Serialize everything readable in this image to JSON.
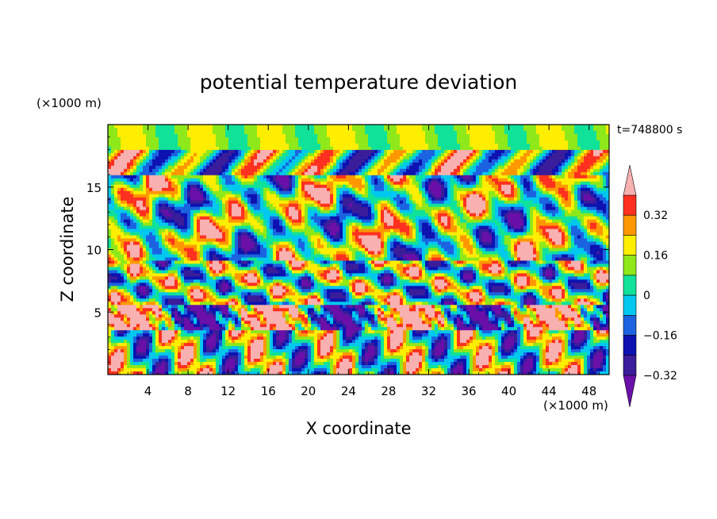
{
  "chart_data": {
    "type": "heatmap",
    "title": "potential temperature deviation",
    "time_label": "t=748800 s",
    "xlabel": "X coordinate",
    "ylabel": "Z coordinate",
    "x_unit": "(×1000 m)",
    "y_unit": "(×1000 m)",
    "xlim": [
      0,
      50
    ],
    "ylim": [
      0,
      20
    ],
    "x_ticks": [
      4,
      8,
      12,
      16,
      20,
      24,
      28,
      32,
      36,
      40,
      44,
      48
    ],
    "y_ticks": [
      5,
      10,
      15
    ],
    "colorbar": {
      "levels": [
        -0.4,
        -0.32,
        -0.24,
        -0.16,
        -0.08,
        0,
        0.08,
        0.16,
        0.24,
        0.32,
        0.4
      ],
      "tick_values": [
        0.32,
        0.16,
        0,
        -0.16,
        -0.32
      ],
      "tick_labels": [
        "0.32",
        "0.16",
        "0",
        "−0.16",
        "−0.32"
      ],
      "colors": [
        "#6a0fa8",
        "#3a1d9a",
        "#0d12b0",
        "#1b63e0",
        "#00c8ee",
        "#10e29a",
        "#8ee81a",
        "#ffee00",
        "#ff9800",
        "#ff3020",
        "#f8b0b0"
      ],
      "extend": "both"
    },
    "bands": [
      {
        "z": 17.5,
        "desc": "alternating cells"
      },
      {
        "z": 13.0,
        "desc": "elongated eddies"
      },
      {
        "z": 8.0,
        "desc": "mixed cells"
      },
      {
        "z": 4.5,
        "desc": "strong positive/negative layer"
      },
      {
        "z": 2.0,
        "desc": "near-surface plumes"
      }
    ]
  }
}
